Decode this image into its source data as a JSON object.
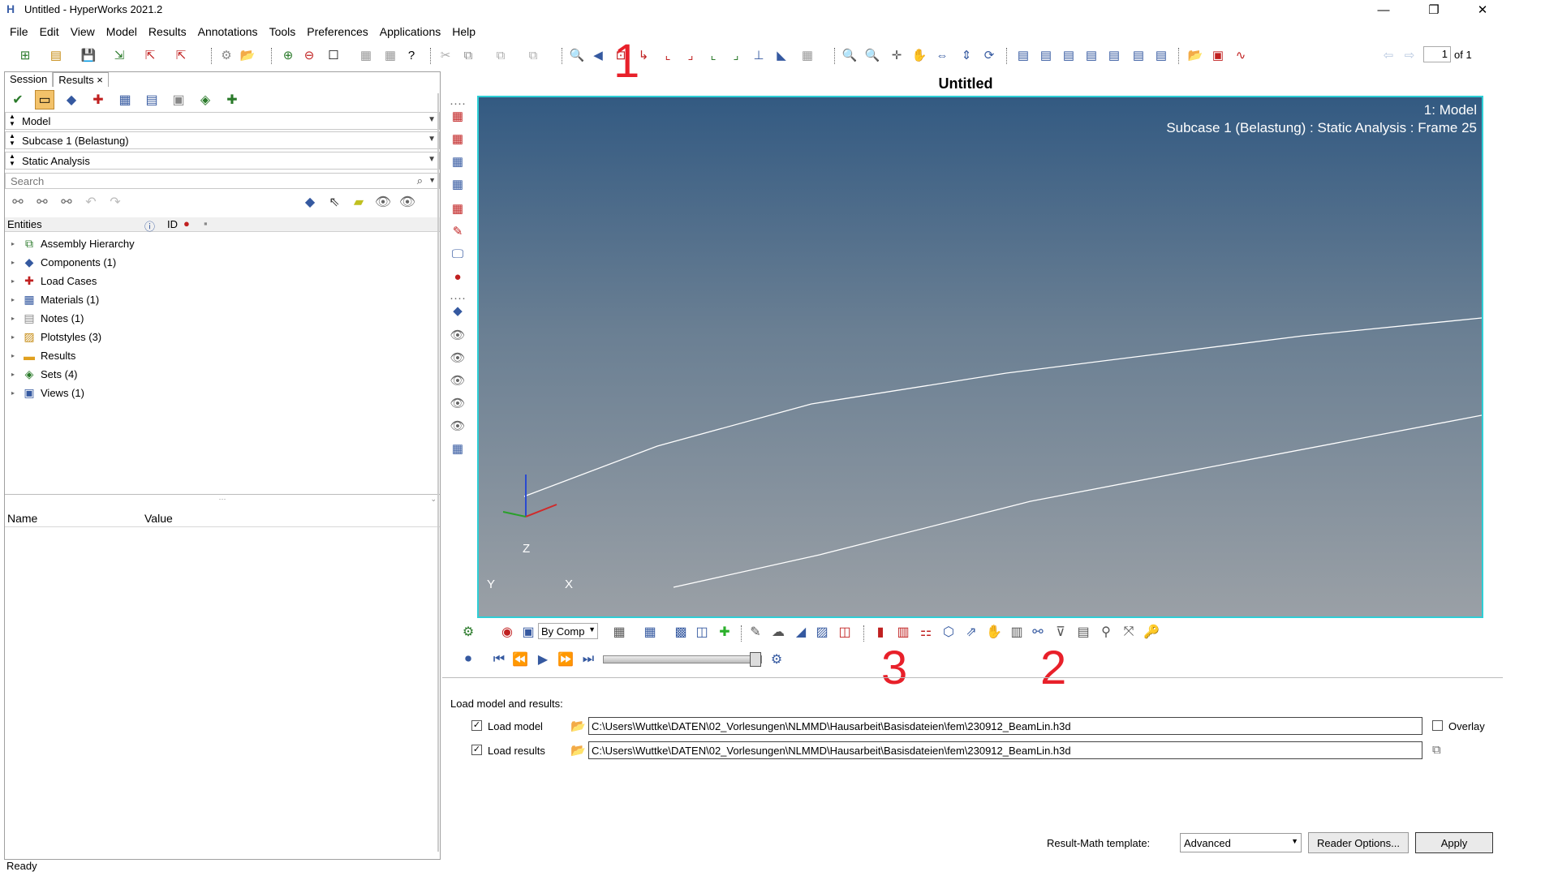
{
  "window": {
    "title": "Untitled - HyperWorks 2021.2",
    "minimize": "—",
    "restore": "❐",
    "close": "✕"
  },
  "menu": [
    "File",
    "Edit",
    "View",
    "Model",
    "Results",
    "Annotations",
    "Tools",
    "Preferences",
    "Applications",
    "Help"
  ],
  "page_nav": {
    "current": "1",
    "of_label": "of 1"
  },
  "left": {
    "tabs": [
      "Session",
      "Results ×"
    ],
    "model_select": "Model",
    "subcase_select": "Subcase 1 (Belastung)",
    "analysis_select": "Static Analysis",
    "search_placeholder": "Search",
    "entities_header": "Entities",
    "id_header": "ID",
    "tree": [
      {
        "label": "Assembly Hierarchy",
        "icon": "assembly-icon"
      },
      {
        "label": "Components (1)",
        "icon": "components-icon"
      },
      {
        "label": "Load Cases",
        "icon": "loadcase-icon"
      },
      {
        "label": "Materials (1)",
        "icon": "materials-icon"
      },
      {
        "label": "Notes (1)",
        "icon": "notes-icon"
      },
      {
        "label": "Plotstyles (3)",
        "icon": "plotstyles-icon"
      },
      {
        "label": "Results",
        "icon": "folder-icon"
      },
      {
        "label": "Sets (4)",
        "icon": "sets-icon"
      },
      {
        "label": "Views (1)",
        "icon": "views-icon"
      }
    ],
    "name_header": "Name",
    "value_header": "Value"
  },
  "status": "Ready",
  "viewport": {
    "title": "Untitled",
    "model_label": "1: Model",
    "subcase_label": "Subcase 1 (Belastung) : Static Analysis : Frame 25",
    "axis_z": "Z",
    "axis_y": "Y",
    "axis_x": "X",
    "border_color": "#2ecfd6"
  },
  "result_toolbar": {
    "by_comp": "By Comp"
  },
  "annotations": {
    "one": "1",
    "two": "2",
    "three": "3",
    "color": "#e8202a"
  },
  "load": {
    "heading": "Load model and results:",
    "load_model_label": "Load model",
    "load_results_label": "Load results",
    "model_path": "C:\\Users\\Wuttke\\DATEN\\02_Vorlesungen\\NLMMD\\Hausarbeit\\Basisdateien\\fem\\230912_BeamLin.h3d",
    "results_path": "C:\\Users\\Wuttke\\DATEN\\02_Vorlesungen\\NLMMD\\Hausarbeit\\Basisdateien\\fem\\230912_BeamLin.h3d",
    "overlay_label": "Overlay",
    "template_label": "Result-Math template:",
    "template_value": "Advanced",
    "reader_options": "Reader Options...",
    "apply": "Apply"
  }
}
